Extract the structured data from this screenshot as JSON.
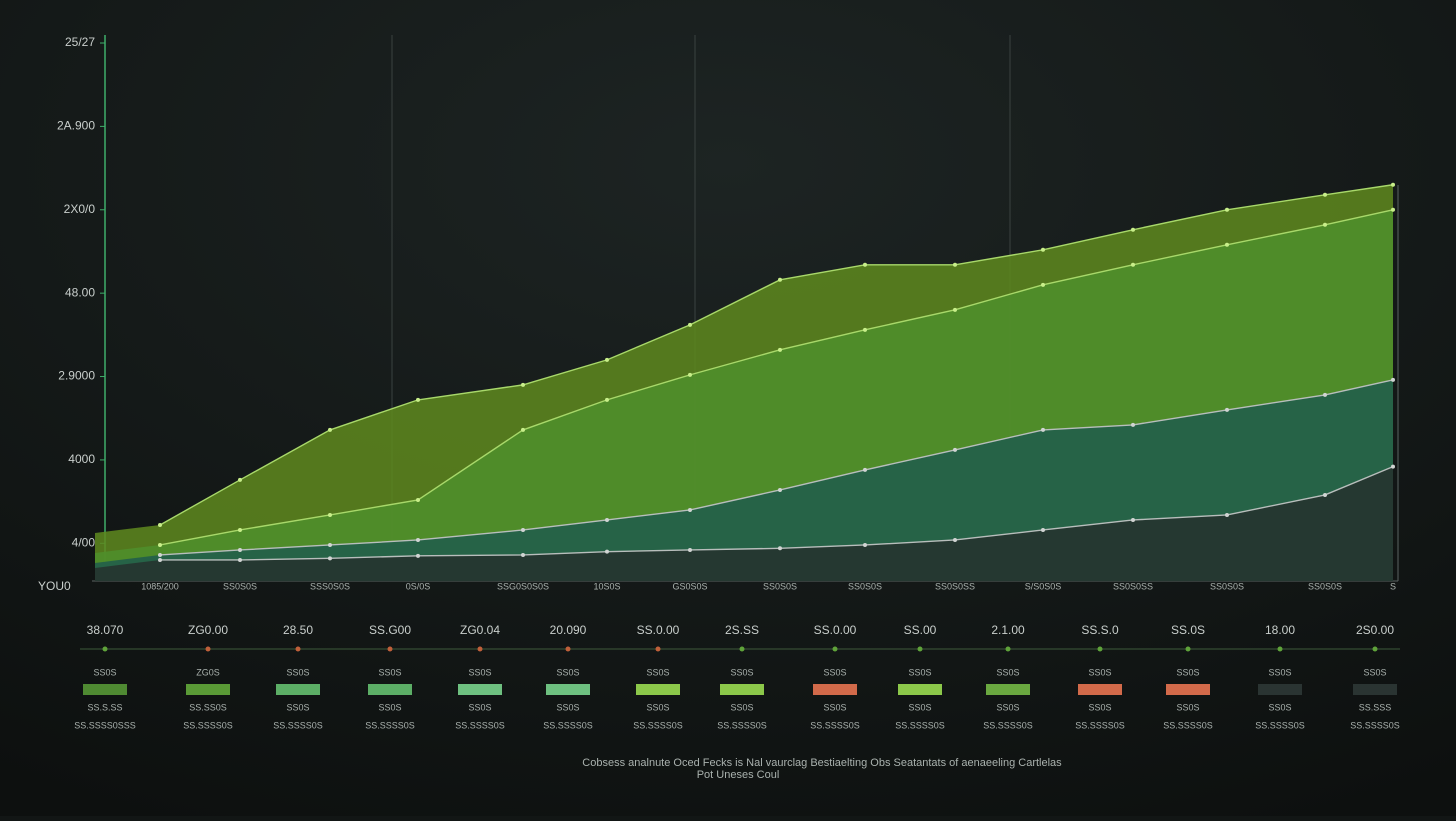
{
  "chart_data": {
    "type": "area",
    "y_corner_label": "YOU0",
    "categories": [
      "1085/200",
      "SS0S0S",
      "SSS0S0S",
      "0S/0S",
      "SSG0S0S0S",
      "10S0S",
      "GS0S0S",
      "SS0S0S",
      "SS0S0S",
      "SS0S0SS",
      "S/S0S0S",
      "SS0S0SS",
      "SS0S0S",
      "SS0S0S",
      "S"
    ],
    "ylim": [
      0.5,
      7
    ],
    "yticks": [
      {
        "value": 1,
        "label": "4/00"
      },
      {
        "value": 2,
        "label": "4000"
      },
      {
        "value": 3,
        "label": "2.9000"
      },
      {
        "value": 4,
        "label": "48.00"
      },
      {
        "value": 5,
        "label": "2X0/0"
      },
      {
        "value": 6,
        "label": "2A.900"
      },
      {
        "value": 7,
        "label": "25/27"
      }
    ],
    "series": [
      {
        "color": "#5f8a1e",
        "values": [
          1.22,
          1.76,
          2.36,
          2.72,
          2.9,
          3.2,
          3.62,
          4.16,
          4.34,
          4.34,
          4.52,
          4.76,
          5.0,
          5.18,
          5.3
        ]
      },
      {
        "color": "#4f8f2c",
        "values": [
          0.98,
          1.16,
          1.34,
          1.52,
          2.36,
          2.72,
          3.02,
          3.32,
          3.56,
          3.8,
          4.1,
          4.34,
          4.58,
          4.82,
          5.0
        ]
      },
      {
        "color": "#1f5c4c",
        "values": [
          0.86,
          0.92,
          0.98,
          1.04,
          1.16,
          1.28,
          1.4,
          1.64,
          1.88,
          2.12,
          2.36,
          2.42,
          2.6,
          2.78,
          2.96
        ]
      },
      {
        "color": "#26302e",
        "values": [
          0.8,
          0.8,
          0.82,
          0.85,
          0.86,
          0.9,
          0.92,
          0.94,
          0.98,
          1.04,
          1.16,
          1.28,
          1.34,
          1.58,
          1.92
        ]
      }
    ]
  },
  "table": {
    "columns": [
      {
        "top": "38.070",
        "dot": "#5fa33a",
        "label": "SS0S",
        "swatch": "#4f8a32",
        "sub1": "SS.S.SS",
        "sub2": "SS.SSSS0SSS"
      },
      {
        "top": "ZG0.00",
        "dot": "#c0603a",
        "label": "ZG0S",
        "swatch": "#5a9a36",
        "sub1": "SS.SS0S",
        "sub2": "SS.SSSS0S"
      },
      {
        "top": "28.50",
        "dot": "#c0603a",
        "label": "SS0S",
        "swatch": "#5cae66",
        "sub1": "SS0S",
        "sub2": "SS.SSSS0S"
      },
      {
        "top": "SS.G00",
        "dot": "#c0603a",
        "label": "SS0S",
        "swatch": "#5cae66",
        "sub1": "SS0S",
        "sub2": "SS.SSSS0S"
      },
      {
        "top": "ZG0.04",
        "dot": "#c0603a",
        "label": "SS0S",
        "swatch": "#6ec080",
        "sub1": "SS0S",
        "sub2": "SS.SSSS0S"
      },
      {
        "top": "20.090",
        "dot": "#c0603a",
        "label": "SS0S",
        "swatch": "#6ec080",
        "sub1": "SS0S",
        "sub2": "SS.SSSS0S"
      },
      {
        "top": "SS.0.00",
        "dot": "#c0603a",
        "label": "SS0S",
        "swatch": "#8cc84a",
        "sub1": "SS0S",
        "sub2": "SS.SSSS0S"
      },
      {
        "top": "2S.SS",
        "dot": "#5fa33a",
        "label": "SS0S",
        "swatch": "#8cc84a",
        "sub1": "SS0S",
        "sub2": "SS.SSSS0S"
      },
      {
        "top": "SS.0.00",
        "dot": "#5fa33a",
        "label": "SS0S",
        "swatch": "#d26a4a",
        "sub1": "SS0S",
        "sub2": "SS.SSSS0S"
      },
      {
        "top": "SS.00",
        "dot": "#5fa33a",
        "label": "SS0S",
        "swatch": "#8cc84a",
        "sub1": "SS0S",
        "sub2": "SS.SSSS0S"
      },
      {
        "top": "2.1.00",
        "dot": "#5fa33a",
        "label": "SS0S",
        "swatch": "#6aa840",
        "sub1": "SS0S",
        "sub2": "SS.SSSS0S"
      },
      {
        "top": "SS.S.0",
        "dot": "#5fa33a",
        "label": "SS0S",
        "swatch": "#d26a4a",
        "sub1": "SS0S",
        "sub2": "SS.SSSS0S"
      },
      {
        "top": "SS.0S",
        "dot": "#5fa33a",
        "label": "SS0S",
        "swatch": "#d26a4a",
        "sub1": "SS0S",
        "sub2": "SS.SSSS0S"
      },
      {
        "top": "18.00",
        "dot": "#5fa33a",
        "label": "SS0S",
        "swatch": "#2a3432",
        "sub1": "SS0S",
        "sub2": "SS.SSSS0S"
      },
      {
        "top": "2S0.00",
        "dot": "#5fa33a",
        "label": "SS0S",
        "swatch": "#2a3432",
        "sub1": "SS.SSS",
        "sub2": "SS.SSSS0S"
      }
    ]
  },
  "footer": {
    "line1": "Cobsess analnute Oced Fecks is Nal vaurclag Bestiaelting Obs Seatantats of aenaeeling Cartlelas",
    "line2": "Pot Uneses Coul"
  }
}
